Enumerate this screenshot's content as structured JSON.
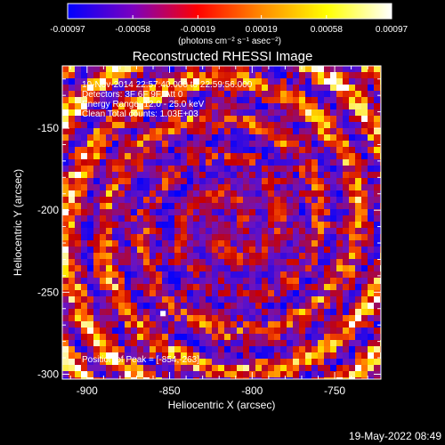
{
  "chart_data": {
    "type": "heatmap",
    "title": "Reconstructed RHESSI Image",
    "xlabel": "Heliocentric X (arcsec)",
    "ylabel": "Heliocentric Y (arcsec)",
    "xlim": [
      -915,
      -722
    ],
    "ylim": [
      -303,
      -112
    ],
    "x_ticks": [
      -900,
      -850,
      -800,
      -750
    ],
    "x_tick_labels": [
      "-900",
      "-850",
      "-800",
      "-750"
    ],
    "y_ticks": [
      -150,
      -200,
      -250,
      -300
    ],
    "y_tick_labels": [
      "-150",
      "-200",
      "-250",
      "-300"
    ],
    "colorbar": {
      "range": [
        -0.00097,
        0.00097
      ],
      "ticks": [
        -0.00097,
        -0.00058,
        -0.00019,
        0.00019,
        0.00058,
        0.00097
      ],
      "tick_labels": [
        "-0.00097",
        "-0.00058",
        "-0.00019",
        "0.00019",
        "0.00058",
        "0.00097"
      ],
      "unit_label": "(photons cm⁻² s⁻¹ asec⁻²)",
      "colors": [
        "#0000ff",
        "#7a00c0",
        "#ff0000",
        "#ff8c00",
        "#ffff00",
        "#ffffff"
      ]
    },
    "annotations": [
      "10-Nov-2014 22:57:40.000 to 22:59:56.000",
      "Detectors: 3F 6F 9F, Att 0",
      "Energy Range: 12.0 - 25.0 keV",
      "Clean    Total counts: 1.03E+03"
    ],
    "peak_label": "Position of Peak = [-854,-263]",
    "peak_position": [
      -854,
      -263
    ],
    "grid": false
  },
  "timestamp": "19-May-2022 08:49"
}
